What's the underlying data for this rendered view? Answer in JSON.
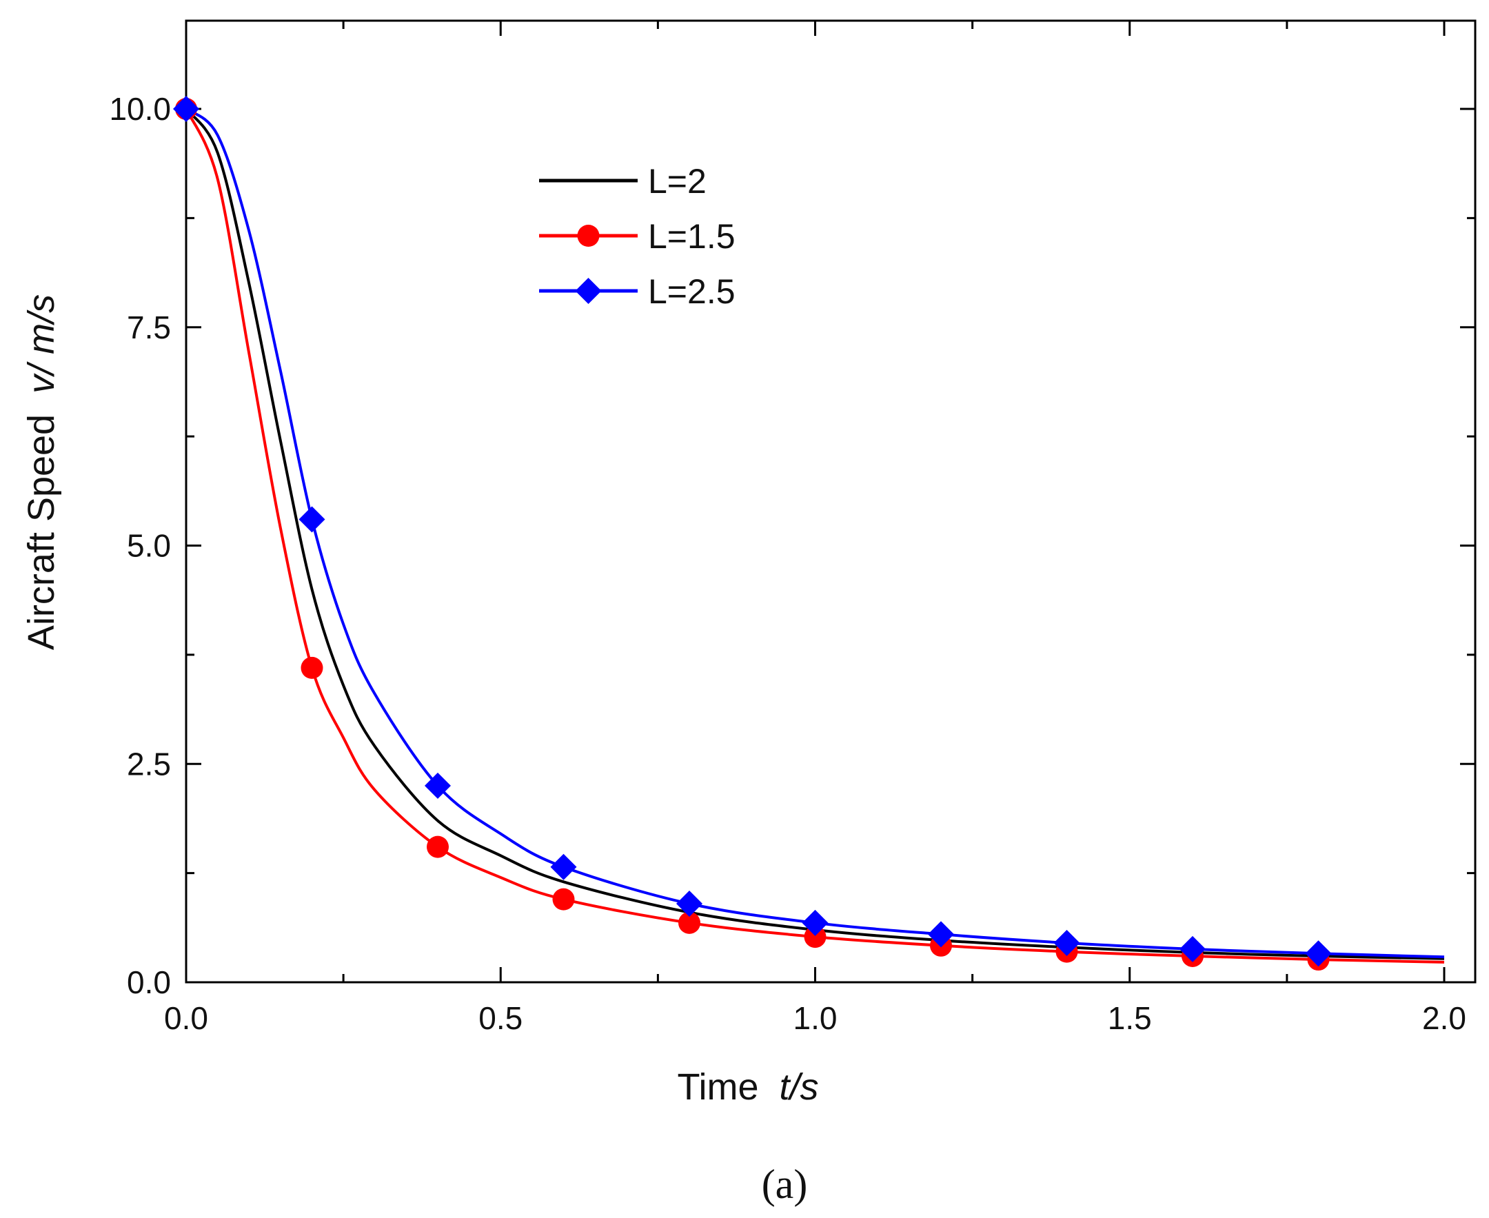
{
  "chart_data": {
    "type": "line",
    "title": "",
    "xlabel": {
      "main": "Time",
      "unit": "t/s"
    },
    "ylabel": {
      "main": "Aircraft Speed",
      "unit": "v/ m/s"
    },
    "xlim": [
      0.0,
      2.0
    ],
    "ylim": [
      0.0,
      10.5
    ],
    "xticks": [
      "0.0",
      "0.5",
      "1.0",
      "1.5",
      "2.0"
    ],
    "yticks": [
      "0.0",
      "2.5",
      "5.0",
      "7.5",
      "10.0"
    ],
    "grid": false,
    "legend_position": "top-center",
    "series": [
      {
        "name": "L=2",
        "color": "#000000",
        "marker": "none",
        "x": [
          0.0,
          0.05,
          0.1,
          0.15,
          0.2,
          0.25,
          0.3,
          0.4,
          0.5,
          0.6,
          0.8,
          1.0,
          1.2,
          1.4,
          1.6,
          1.8,
          2.0
        ],
        "y": [
          10.0,
          9.5,
          8.0,
          6.2,
          4.5,
          3.4,
          2.7,
          1.85,
          1.45,
          1.15,
          0.8,
          0.6,
          0.48,
          0.4,
          0.34,
          0.3,
          0.27
        ]
      },
      {
        "name": "L=1.5",
        "color": "#ff0000",
        "marker": "circle",
        "x": [
          0.0,
          0.05,
          0.1,
          0.15,
          0.2,
          0.25,
          0.3,
          0.4,
          0.5,
          0.6,
          0.8,
          1.0,
          1.2,
          1.4,
          1.6,
          1.8,
          2.0
        ],
        "y": [
          10.0,
          9.2,
          7.2,
          5.2,
          3.6,
          2.8,
          2.2,
          1.55,
          1.2,
          0.95,
          0.68,
          0.52,
          0.42,
          0.35,
          0.3,
          0.26,
          0.23
        ],
        "markers_x": [
          0.0,
          0.2,
          0.4,
          0.6,
          0.8,
          1.0,
          1.2,
          1.4,
          1.6,
          1.8
        ],
        "markers_y": [
          10.0,
          3.6,
          1.55,
          0.95,
          0.68,
          0.52,
          0.42,
          0.35,
          0.3,
          0.26
        ]
      },
      {
        "name": "L=2.5",
        "color": "#0000ff",
        "marker": "diamond",
        "x": [
          0.0,
          0.05,
          0.1,
          0.15,
          0.2,
          0.25,
          0.3,
          0.4,
          0.5,
          0.6,
          0.8,
          1.0,
          1.2,
          1.4,
          1.6,
          1.8,
          2.0
        ],
        "y": [
          10.0,
          9.7,
          8.6,
          7.0,
          5.3,
          4.1,
          3.3,
          2.25,
          1.7,
          1.32,
          0.9,
          0.68,
          0.55,
          0.45,
          0.38,
          0.33,
          0.29
        ],
        "markers_x": [
          0.0,
          0.2,
          0.4,
          0.6,
          0.8,
          1.0,
          1.2,
          1.4,
          1.6,
          1.8
        ],
        "markers_y": [
          10.0,
          5.3,
          2.25,
          1.32,
          0.9,
          0.68,
          0.55,
          0.45,
          0.38,
          0.33
        ]
      }
    ]
  },
  "caption": "(a)"
}
